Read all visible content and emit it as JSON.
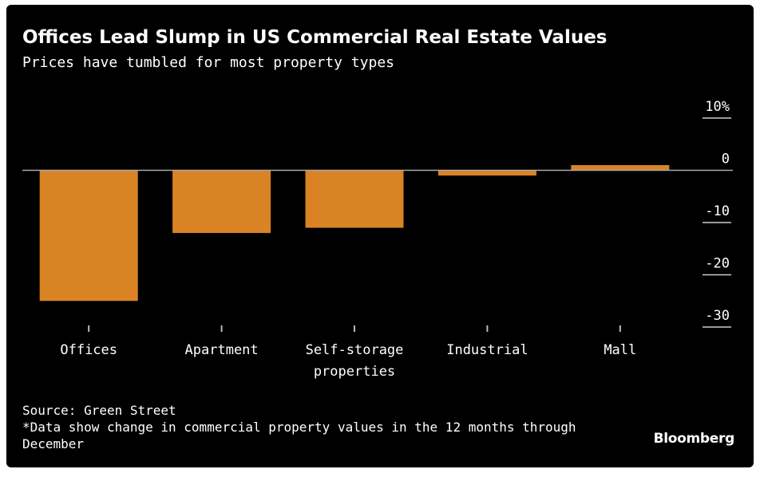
{
  "header": {
    "title": "Offices Lead Slump in US Commercial Real Estate Values",
    "subtitle": "Prices have tumbled for most property types"
  },
  "footer": {
    "source": "Source: Green Street",
    "note": "*Data show change in commercial property values in the 12 months through December",
    "brand": "Bloomberg"
  },
  "colors": {
    "bar": "#d98324",
    "background": "#000000",
    "text": "#ffffff",
    "zero_line": "#aaaaaa",
    "gridline": "#cccccc"
  },
  "chart_data": {
    "type": "bar",
    "categories": [
      "Offices",
      "Apartment",
      "Self-storage properties",
      "Industrial",
      "Mall"
    ],
    "category_lines": [
      [
        "Offices"
      ],
      [
        "Apartment"
      ],
      [
        "Self-storage",
        "properties"
      ],
      [
        "Industrial"
      ],
      [
        "Mall"
      ]
    ],
    "values": [
      -25,
      -12,
      -11,
      -1,
      1
    ],
    "ylim": [
      -30,
      10
    ],
    "yticks": [
      10,
      0,
      -10,
      -20,
      -30
    ],
    "ytick_labels": [
      "10%",
      "0",
      "-10",
      "-20",
      "-30"
    ],
    "title": "Offices Lead Slump in US Commercial Real Estate Values",
    "subtitle": "Prices have tumbled for most property types",
    "xlabel": "",
    "ylabel": "",
    "grid": false,
    "legend": "none"
  }
}
